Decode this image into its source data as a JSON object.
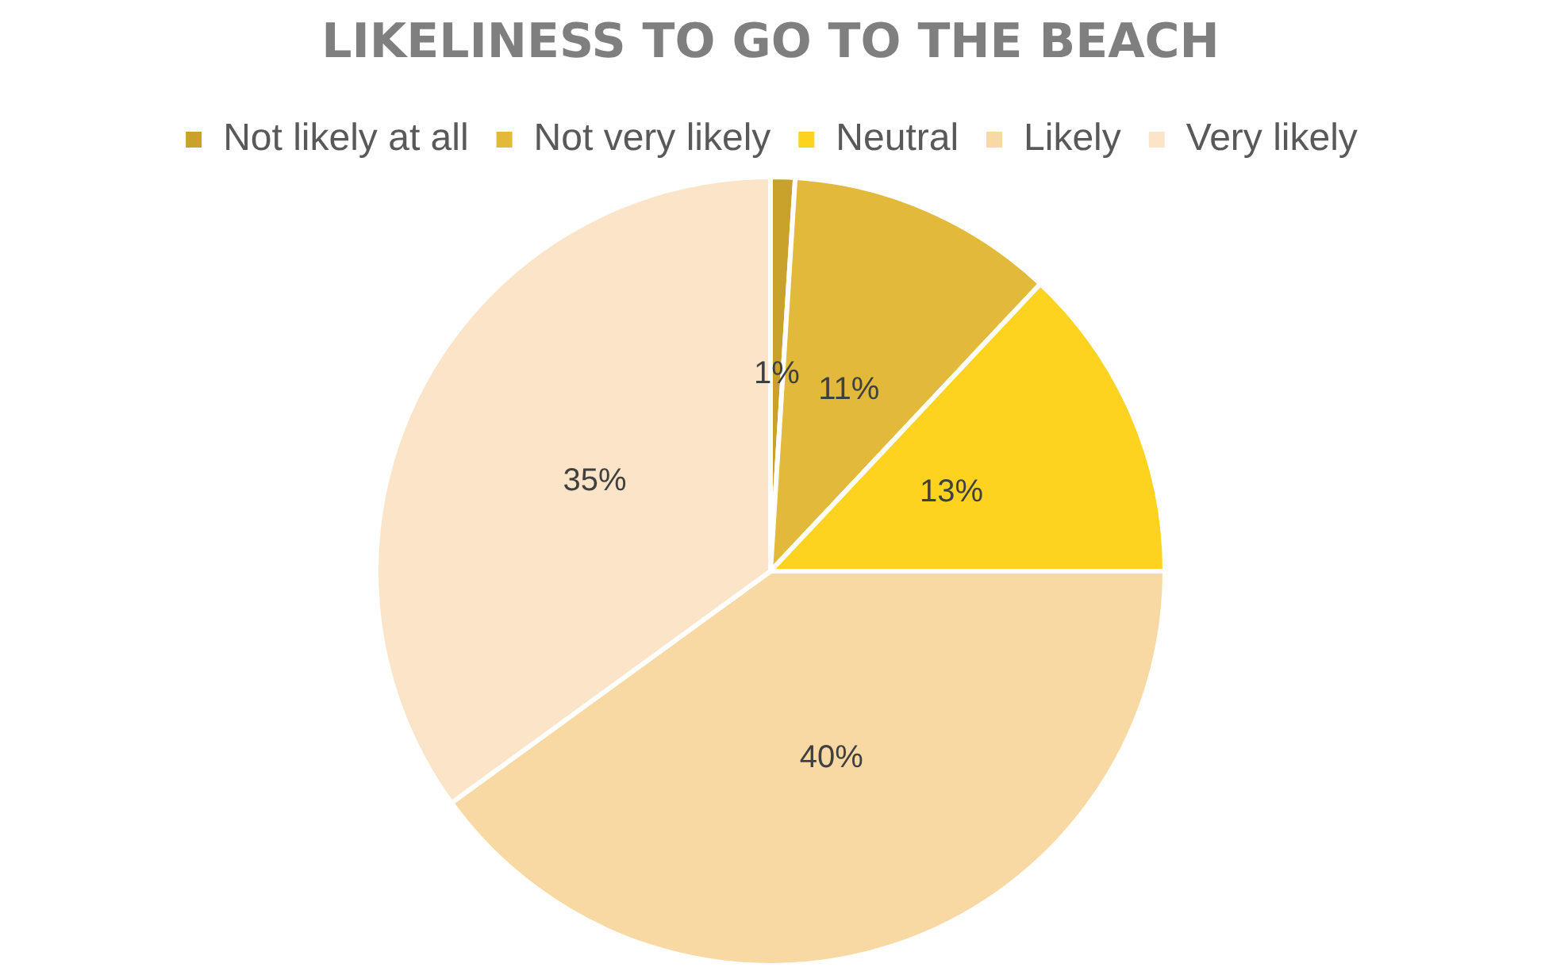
{
  "chart_data": {
    "type": "pie",
    "title": "LIKELINESS TO GO TO THE BEACH",
    "categories": [
      "Not likely at all",
      "Not very likely",
      "Neutral",
      "Likely",
      "Very likely"
    ],
    "values": [
      1,
      11,
      13,
      40,
      35
    ],
    "colors": [
      "#c9a22c",
      "#e2b93a",
      "#fdd31f",
      "#f8d9a4",
      "#fbe4c8"
    ],
    "value_labels": [
      "1%",
      "11%",
      "13%",
      "40%",
      "35%"
    ],
    "legend": "top"
  }
}
